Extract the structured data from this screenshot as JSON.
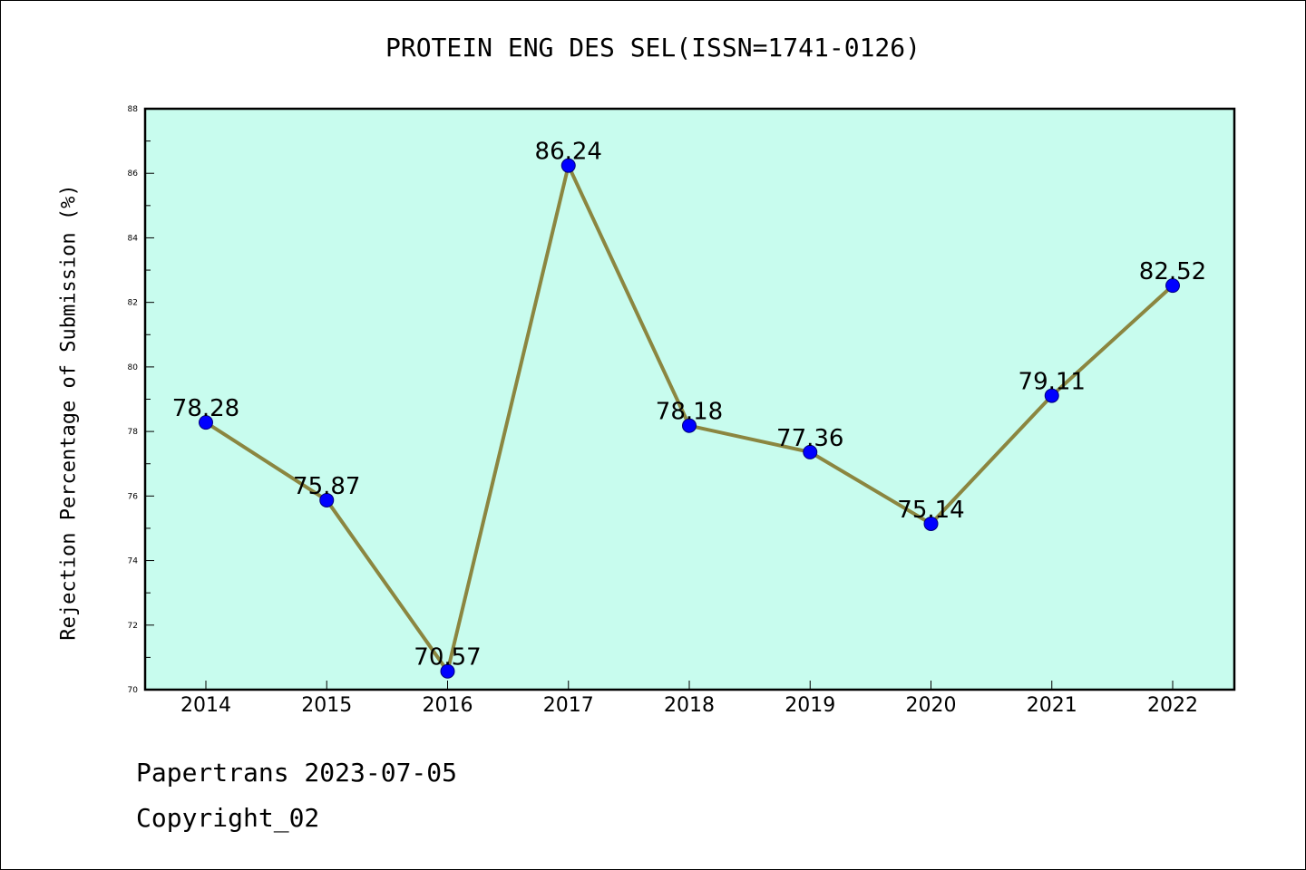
{
  "chart_data": {
    "type": "line",
    "title": "PROTEIN ENG DES SEL(ISSN=1741-0126)",
    "ylabel": "Rejection Percentage of Submission (%)",
    "xlabel": "",
    "categories": [
      "2014",
      "2015",
      "2016",
      "2017",
      "2018",
      "2019",
      "2020",
      "2021",
      "2022"
    ],
    "values": [
      78.28,
      75.87,
      70.57,
      86.24,
      78.18,
      77.36,
      75.14,
      79.11,
      82.52
    ],
    "data_labels": [
      "78.28",
      "75.87",
      "70.57",
      "86.24",
      "78.18",
      "77.36",
      "75.14",
      "79.11",
      "82.52"
    ],
    "ylim": [
      70,
      88
    ],
    "yticks": [
      "70",
      "72",
      "74",
      "76",
      "78",
      "80",
      "82",
      "84",
      "86",
      "88"
    ],
    "grid": false,
    "colors": {
      "plot_background": "#c8fcee",
      "line": "#8b8640",
      "marker": "#0000ff"
    }
  },
  "footer": {
    "line1": "Papertrans 2023-07-05",
    "line2": "Copyright_02"
  }
}
